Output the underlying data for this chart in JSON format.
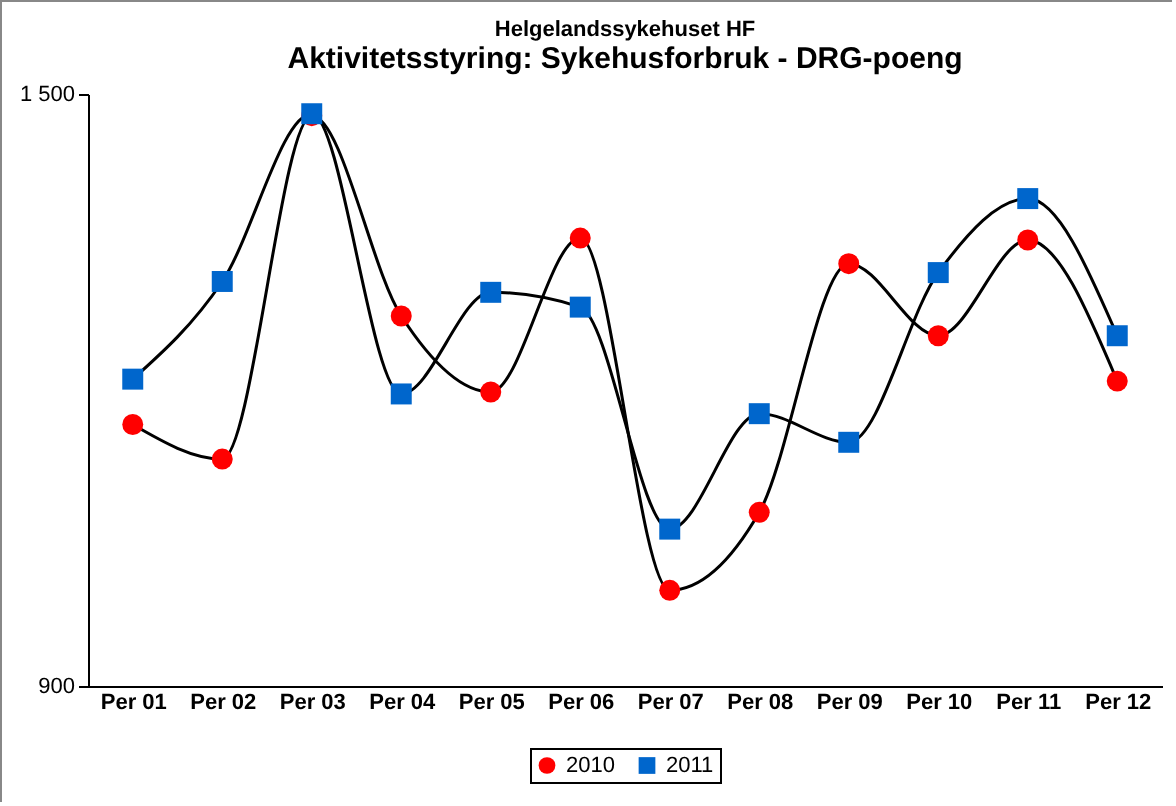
{
  "chart_data": {
    "type": "line",
    "title": "Helgelandssykehuset HF",
    "subtitle": "Aktivitetsstyring: Sykehusforbruk - DRG-poeng",
    "categories": [
      "Per 01",
      "Per 02",
      "Per 03",
      "Per 04",
      "Per 05",
      "Per 06",
      "Per 07",
      "Per 08",
      "Per 09",
      "Per 10",
      "Per 11",
      "Per 12"
    ],
    "series": [
      {
        "name": "2010",
        "color": "#ff0000",
        "marker": "circle",
        "values": [
          1165,
          1130,
          1478,
          1275,
          1198,
          1354,
          997,
          1076,
          1328,
          1255,
          1352,
          1209
        ]
      },
      {
        "name": "2011",
        "color": "#0066cc",
        "marker": "square",
        "values": [
          1211,
          1310,
          1480,
          1196,
          1299,
          1284,
          1059,
          1176,
          1147,
          1319,
          1394,
          1255
        ]
      }
    ],
    "ylim": [
      900,
      1500
    ],
    "yticks": [
      {
        "value": 900,
        "label": "900"
      },
      {
        "value": 1500,
        "label": "1 500"
      }
    ],
    "grid": false,
    "legend": "bottom"
  }
}
